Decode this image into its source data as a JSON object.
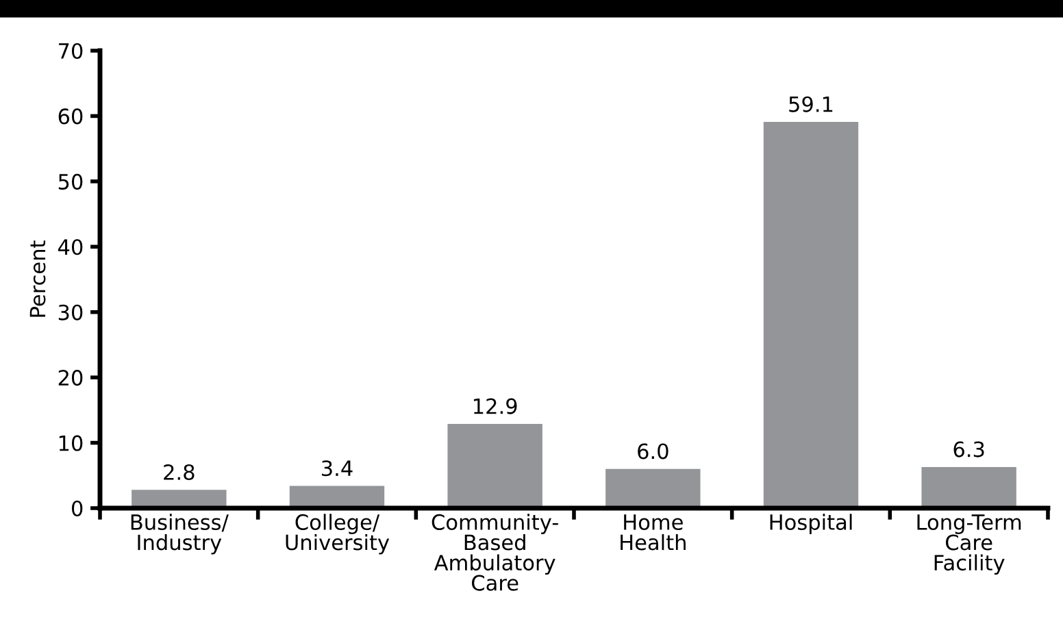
{
  "chart_data": {
    "type": "bar",
    "ylabel": "Percent",
    "categories": [
      "Business/\nIndustry",
      "College/\nUniversity",
      "Community-\nBased\nAmbulatory\nCare",
      "Home\nHealth",
      "Hospital",
      "Long-Term\nCare\nFacility"
    ],
    "values": [
      2.8,
      3.4,
      12.9,
      6.0,
      59.1,
      6.3
    ],
    "color": "#939598",
    "ylim": [
      0,
      70
    ],
    "yticks": [
      0,
      10,
      20,
      30,
      40,
      50,
      60,
      70
    ],
    "grid": false,
    "value_labels": [
      "2.8",
      "3.4",
      "12.9",
      "6.0",
      "59.1",
      "6.3"
    ]
  }
}
